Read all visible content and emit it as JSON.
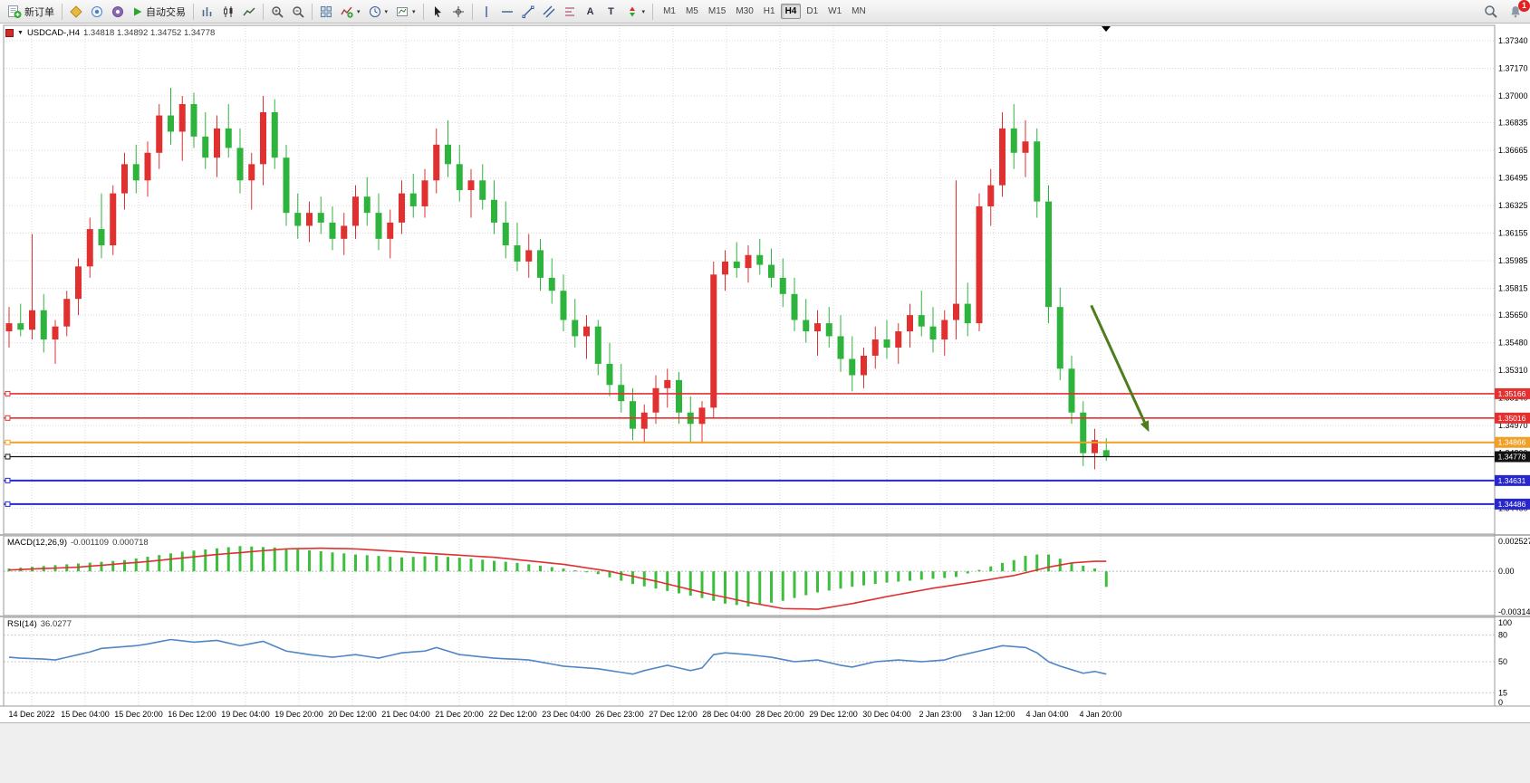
{
  "icons": {
    "caret": "▾",
    "expand": "▼",
    "text_tool": "A",
    "label_tool": "T"
  },
  "toolbar": {
    "new_order_label": "新订单",
    "auto_trading_label": "自动交易",
    "timeframes": [
      "M1",
      "M5",
      "M15",
      "M30",
      "H1",
      "H4",
      "D1",
      "W1",
      "MN"
    ],
    "active_timeframe": "H4",
    "notification_count": "1"
  },
  "chart": {
    "symbol_period": "USDCAD-,H4",
    "ohlc": "1.34818 1.34892 1.34752 1.34778"
  },
  "price_axis": {
    "ticks": [
      "1.37340",
      "1.37170",
      "1.37000",
      "1.36835",
      "1.36665",
      "1.36495",
      "1.36325",
      "1.36155",
      "1.35985",
      "1.35815",
      "1.35650",
      "1.35480",
      "1.35310",
      "1.35140",
      "1.34970",
      "1.34800",
      "1.34630",
      "1.34460"
    ]
  },
  "hlines": [
    {
      "price": 1.35166,
      "label": "1.35166",
      "color": "#e53030",
      "width": 1.6
    },
    {
      "price": 1.35016,
      "label": "1.35016",
      "color": "#e53030",
      "width": 1.6
    },
    {
      "price": 1.34866,
      "label": "1.34866",
      "color": "#f0a028",
      "width": 2
    },
    {
      "price": 1.34778,
      "label": "1.34778",
      "color": "#111111",
      "width": 1.2
    },
    {
      "price": 1.34631,
      "label": "1.34631",
      "color": "#2727cd",
      "width": 2
    },
    {
      "price": 1.34486,
      "label": "1.34486",
      "color": "#2727cd",
      "width": 2
    }
  ],
  "time_axis": [
    "14 Dec 2022",
    "15 Dec 04:00",
    "15 Dec 20:00",
    "16 Dec 12:00",
    "19 Dec 04:00",
    "19 Dec 20:00",
    "20 Dec 12:00",
    "21 Dec 04:00",
    "21 Dec 20:00",
    "22 Dec 12:00",
    "23 Dec 04:00",
    "26 Dec 23:00",
    "27 Dec 12:00",
    "28 Dec 04:00",
    "28 Dec 20:00",
    "29 Dec 12:00",
    "30 Dec 04:00",
    "2 Jan 23:00",
    "3 Jan 12:00",
    "4 Jan 04:00",
    "4 Jan 20:00"
  ],
  "macd": {
    "label": "MACD(12,26,9)",
    "main_value": "-0.001109",
    "signal_value": "0.000718",
    "scale_labels": [
      "0.002527",
      "0.00",
      "-0.003149"
    ],
    "histogram": [
      0.0002,
      0.00026,
      0.00032,
      0.00038,
      0.00044,
      0.0005,
      0.00056,
      0.00062,
      0.00068,
      0.00074,
      0.0008,
      0.00092,
      0.00104,
      0.00116,
      0.00128,
      0.0014,
      0.00148,
      0.00156,
      0.00164,
      0.00172,
      0.0018,
      0.00177,
      0.00173,
      0.0017,
      0.00163,
      0.00157,
      0.0015,
      0.00143,
      0.00135,
      0.00128,
      0.0012,
      0.00115,
      0.0011,
      0.00105,
      0.001,
      0.00103,
      0.00107,
      0.0011,
      0.00103,
      0.00097,
      0.0009,
      0.00083,
      0.00075,
      0.00068,
      0.0006,
      0.0005,
      0.0004,
      0.0003,
      0.0002,
      7e-05,
      -7e-05,
      -0.0002,
      -0.00043,
      -0.00067,
      -0.0009,
      -0.00107,
      -0.00123,
      -0.0014,
      -0.00157,
      -0.00173,
      -0.0019,
      -0.0021,
      -0.0023,
      -0.0024,
      -0.0025,
      -0.00237,
      -0.00223,
      -0.0021,
      -0.0019,
      -0.0017,
      -0.0015,
      -0.00137,
      -0.00123,
      -0.0011,
      -0.001,
      -0.0009,
      -0.0008,
      -0.00073,
      -0.00067,
      -0.0006,
      -0.00053,
      -0.00047,
      -0.0004,
      -0.00015,
      0.0001,
      0.00035,
      0.0006,
      0.0008,
      0.0011,
      0.0012,
      0.0012,
      0.0009,
      0.0006,
      0.0004,
      0.0002,
      -0.001109
    ],
    "signal": [
      0.0001,
      0.00013,
      0.00017,
      0.0002,
      0.00023,
      0.00027,
      0.0003,
      0.00037,
      0.00043,
      0.0005,
      0.00057,
      0.00063,
      0.0007,
      0.00078,
      0.00087,
      0.00095,
      0.00103,
      0.00112,
      0.0012,
      0.00127,
      0.00133,
      0.0014,
      0.00147,
      0.00153,
      0.0016,
      0.00162,
      0.00163,
      0.00165,
      0.00163,
      0.00162,
      0.0016,
      0.00155,
      0.0015,
      0.00145,
      0.0014,
      0.00135,
      0.0013,
      0.00125,
      0.0012,
      0.00115,
      0.0011,
      0.00105,
      0.001,
      0.00092,
      0.00083,
      0.00075,
      0.00067,
      0.00058,
      0.0005,
      0.00038,
      0.00025,
      0.00013,
      0,
      -0.00018,
      -0.00035,
      -0.00053,
      -0.0007,
      -0.0009,
      -0.0011,
      -0.0013,
      -0.0015,
      -0.00168,
      -0.00185,
      -0.00203,
      -0.0022,
      -0.00235,
      -0.0025,
      -0.00265,
      -0.00267,
      -0.00268,
      -0.0027,
      -0.00257,
      -0.00243,
      -0.0023,
      -0.00213,
      -0.00197,
      -0.0018,
      -0.00165,
      -0.0015,
      -0.00135,
      -0.0012,
      -0.00108,
      -0.00095,
      -0.00083,
      -0.0007,
      -0.00057,
      -0.00043,
      -0.0003,
      -0.0001,
      0.0001,
      0.0003,
      0.00045,
      0.0006,
      0.00066,
      0.00072,
      0.000718
    ]
  },
  "rsi": {
    "label": "RSI(14)",
    "value": "36.0277",
    "scale_labels": [
      "100",
      "80",
      "50",
      "15",
      "0"
    ],
    "levels": [
      80,
      50,
      15
    ],
    "series": [
      55,
      54,
      53.5,
      53,
      52,
      55,
      58,
      61,
      65,
      66,
      67,
      68,
      70,
      72.5,
      75,
      73.5,
      72,
      73,
      74,
      71,
      68,
      70.5,
      73,
      67.5,
      62,
      60,
      58,
      56.5,
      55,
      56.5,
      58,
      56,
      54,
      57,
      60,
      61,
      62,
      66,
      62,
      58,
      56.7,
      55.3,
      54,
      53.3,
      52.7,
      52,
      49.7,
      47.3,
      45,
      44,
      43,
      42,
      40,
      38,
      36,
      40,
      43,
      46,
      43,
      40,
      43,
      58,
      60,
      59,
      58,
      56.5,
      55,
      52.5,
      50,
      51,
      52,
      49,
      46,
      44,
      47,
      50,
      51,
      52,
      51,
      50,
      51,
      52,
      56,
      59,
      62,
      65,
      68,
      67,
      66,
      60,
      50,
      45,
      41,
      37,
      39,
      36.03
    ]
  },
  "colors": {
    "grid": "#d9d9d9",
    "up": "#e03030",
    "down": "#2eb43c",
    "macd_hist": "#3cbf3c",
    "macd_signal": "#e03030",
    "rsi": "#4f86c6",
    "arrow": "#4e7d1e"
  },
  "chart_data": {
    "type": "candlestick",
    "symbol": "USDCAD-",
    "timeframe": "H4",
    "ohlc_current": {
      "open": "1.34818",
      "high": "1.34892",
      "low": "1.34752",
      "close": "1.34778"
    },
    "candles": [
      [
        1.3555,
        1.357,
        1.3545,
        1.356
      ],
      [
        1.356,
        1.3572,
        1.3552,
        1.3556
      ],
      [
        1.3556,
        1.3615,
        1.355,
        1.3568
      ],
      [
        1.3568,
        1.3578,
        1.3542,
        1.355
      ],
      [
        1.355,
        1.3562,
        1.3535,
        1.3558
      ],
      [
        1.3558,
        1.358,
        1.3552,
        1.3575
      ],
      [
        1.3575,
        1.36,
        1.3565,
        1.3595
      ],
      [
        1.3595,
        1.3625,
        1.3588,
        1.3618
      ],
      [
        1.3618,
        1.364,
        1.36,
        1.3608
      ],
      [
        1.3608,
        1.3645,
        1.3602,
        1.364
      ],
      [
        1.364,
        1.3665,
        1.363,
        1.3658
      ],
      [
        1.3658,
        1.367,
        1.364,
        1.3648
      ],
      [
        1.3648,
        1.3672,
        1.3638,
        1.3665
      ],
      [
        1.3665,
        1.3695,
        1.3655,
        1.3688
      ],
      [
        1.3688,
        1.3705,
        1.367,
        1.3678
      ],
      [
        1.3678,
        1.37,
        1.366,
        1.3695
      ],
      [
        1.3695,
        1.3702,
        1.3668,
        1.3675
      ],
      [
        1.3675,
        1.369,
        1.3655,
        1.3662
      ],
      [
        1.3662,
        1.3688,
        1.365,
        1.368
      ],
      [
        1.368,
        1.3695,
        1.3662,
        1.3668
      ],
      [
        1.3668,
        1.368,
        1.364,
        1.3648
      ],
      [
        1.3648,
        1.3665,
        1.363,
        1.3658
      ],
      [
        1.3658,
        1.37,
        1.3645,
        1.369
      ],
      [
        1.369,
        1.3698,
        1.3655,
        1.3662
      ],
      [
        1.3662,
        1.367,
        1.362,
        1.3628
      ],
      [
        1.3628,
        1.364,
        1.3612,
        1.362
      ],
      [
        1.362,
        1.3635,
        1.361,
        1.3628
      ],
      [
        1.3628,
        1.3638,
        1.3615,
        1.3622
      ],
      [
        1.3622,
        1.3632,
        1.3605,
        1.3612
      ],
      [
        1.3612,
        1.3628,
        1.3602,
        1.362
      ],
      [
        1.362,
        1.3645,
        1.3612,
        1.3638
      ],
      [
        1.3638,
        1.365,
        1.362,
        1.3628
      ],
      [
        1.3628,
        1.364,
        1.3605,
        1.3612
      ],
      [
        1.3612,
        1.363,
        1.36,
        1.3622
      ],
      [
        1.3622,
        1.3648,
        1.3615,
        1.364
      ],
      [
        1.364,
        1.3652,
        1.3625,
        1.3632
      ],
      [
        1.3632,
        1.3655,
        1.3625,
        1.3648
      ],
      [
        1.3648,
        1.368,
        1.364,
        1.367
      ],
      [
        1.367,
        1.3685,
        1.365,
        1.3658
      ],
      [
        1.3658,
        1.367,
        1.3635,
        1.3642
      ],
      [
        1.3642,
        1.3655,
        1.3625,
        1.3648
      ],
      [
        1.3648,
        1.3658,
        1.363,
        1.3636
      ],
      [
        1.3636,
        1.3648,
        1.3615,
        1.3622
      ],
      [
        1.3622,
        1.3635,
        1.36,
        1.3608
      ],
      [
        1.3608,
        1.3622,
        1.3592,
        1.3598
      ],
      [
        1.3598,
        1.3615,
        1.3588,
        1.3605
      ],
      [
        1.3605,
        1.3612,
        1.358,
        1.3588
      ],
      [
        1.3588,
        1.36,
        1.3572,
        1.358
      ],
      [
        1.358,
        1.359,
        1.3555,
        1.3562
      ],
      [
        1.3562,
        1.3575,
        1.3545,
        1.3552
      ],
      [
        1.3552,
        1.3565,
        1.3538,
        1.3558
      ],
      [
        1.3558,
        1.3562,
        1.3528,
        1.3535
      ],
      [
        1.3535,
        1.3548,
        1.3515,
        1.3522
      ],
      [
        1.3522,
        1.3535,
        1.3505,
        1.3512
      ],
      [
        1.3512,
        1.352,
        1.3488,
        1.3495
      ],
      [
        1.3495,
        1.351,
        1.3486,
        1.3505
      ],
      [
        1.3505,
        1.3528,
        1.3498,
        1.352
      ],
      [
        1.352,
        1.3532,
        1.3508,
        1.3525
      ],
      [
        1.3525,
        1.353,
        1.3498,
        1.3505
      ],
      [
        1.3505,
        1.3515,
        1.3487,
        1.3498
      ],
      [
        1.3498,
        1.3512,
        1.3486,
        1.3508
      ],
      [
        1.3508,
        1.3598,
        1.3502,
        1.359
      ],
      [
        1.359,
        1.3605,
        1.358,
        1.3598
      ],
      [
        1.3598,
        1.361,
        1.3588,
        1.3594
      ],
      [
        1.3594,
        1.3608,
        1.3585,
        1.3602
      ],
      [
        1.3602,
        1.3612,
        1.359,
        1.3596
      ],
      [
        1.3596,
        1.3606,
        1.3582,
        1.3588
      ],
      [
        1.3588,
        1.36,
        1.357,
        1.3578
      ],
      [
        1.3578,
        1.3588,
        1.3555,
        1.3562
      ],
      [
        1.3562,
        1.3575,
        1.3548,
        1.3555
      ],
      [
        1.3555,
        1.3568,
        1.354,
        1.356
      ],
      [
        1.356,
        1.357,
        1.3545,
        1.3552
      ],
      [
        1.3552,
        1.3565,
        1.353,
        1.3538
      ],
      [
        1.3538,
        1.3552,
        1.3518,
        1.3528
      ],
      [
        1.3528,
        1.3545,
        1.352,
        1.354
      ],
      [
        1.354,
        1.3558,
        1.3532,
        1.355
      ],
      [
        1.355,
        1.3562,
        1.3538,
        1.3545
      ],
      [
        1.3545,
        1.356,
        1.3535,
        1.3555
      ],
      [
        1.3555,
        1.3572,
        1.3545,
        1.3565
      ],
      [
        1.3565,
        1.358,
        1.3552,
        1.3558
      ],
      [
        1.3558,
        1.357,
        1.3542,
        1.355
      ],
      [
        1.355,
        1.3568,
        1.354,
        1.3562
      ],
      [
        1.3562,
        1.3648,
        1.355,
        1.3572
      ],
      [
        1.3572,
        1.3585,
        1.3552,
        1.356
      ],
      [
        1.356,
        1.364,
        1.3555,
        1.3632
      ],
      [
        1.3632,
        1.3655,
        1.362,
        1.3645
      ],
      [
        1.3645,
        1.369,
        1.3638,
        1.368
      ],
      [
        1.368,
        1.3695,
        1.3655,
        1.3665
      ],
      [
        1.3665,
        1.3685,
        1.365,
        1.3672
      ],
      [
        1.3672,
        1.368,
        1.3625,
        1.3635
      ],
      [
        1.3635,
        1.3645,
        1.356,
        1.357
      ],
      [
        1.357,
        1.3582,
        1.3525,
        1.3532
      ],
      [
        1.3532,
        1.354,
        1.3498,
        1.3505
      ],
      [
        1.3505,
        1.3512,
        1.3472,
        1.348
      ],
      [
        1.348,
        1.3495,
        1.347,
        1.3488
      ],
      [
        1.34818,
        1.34892,
        1.34752,
        1.34778
      ]
    ],
    "annotations": [
      {
        "type": "arrow",
        "from": {
          "index": 93.7,
          "price": 1.3571
        },
        "to": {
          "index": 98.7,
          "price": 1.3493
        },
        "color": "#4e7d1e"
      }
    ]
  }
}
